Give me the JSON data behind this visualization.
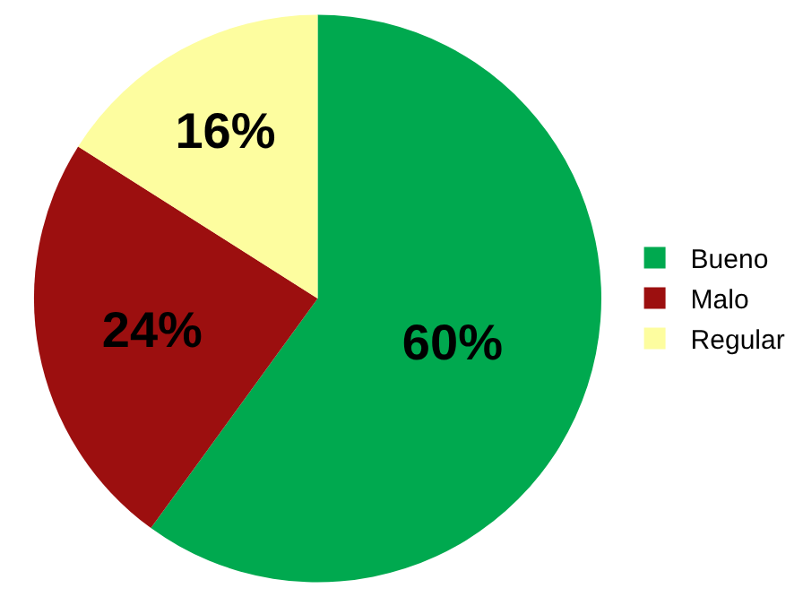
{
  "chart_data": {
    "type": "pie",
    "categories": [
      "Bueno",
      "Malo",
      "Regular"
    ],
    "values": [
      60,
      24,
      16
    ],
    "colors": [
      "#00a94f",
      "#9c0f0f",
      "#fdfd9f"
    ],
    "value_labels": [
      "60%",
      "24%",
      "16%"
    ],
    "legend": "right"
  }
}
